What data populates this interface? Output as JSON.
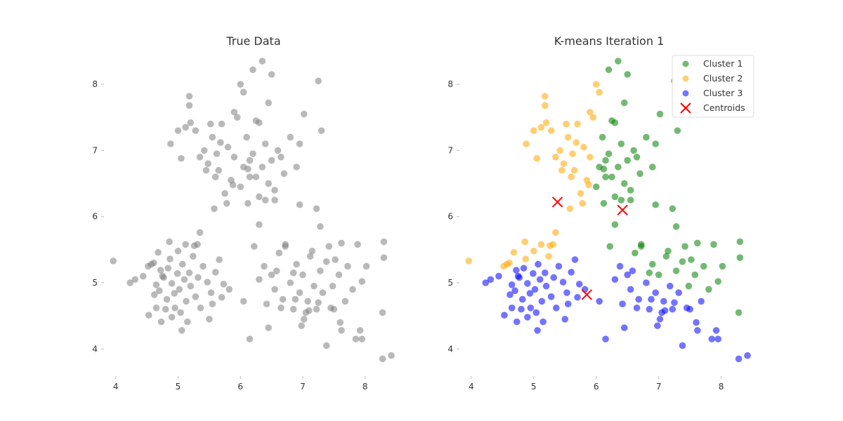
{
  "colors": {
    "gray": "#808080",
    "cluster1": "#008000",
    "cluster2": "#FFA500",
    "cluster3": "#0000FF",
    "centroid": "#FF0000",
    "text": "#333333",
    "tick": "#BBBBBB"
  },
  "chart_data": [
    {
      "type": "scatter",
      "title": "True Data",
      "xlabel": "",
      "ylabel": "",
      "xlim": [
        3.8,
        8.6
      ],
      "ylim": [
        3.6,
        8.5
      ],
      "xticks": [
        "4",
        "5",
        "6",
        "7",
        "8"
      ],
      "yticks": [
        "4",
        "5",
        "6",
        "7",
        "8"
      ],
      "grid": false,
      "series": [
        {
          "color": "#808080",
          "points": [
            [
              3.96,
              5.33
            ],
            [
              4.23,
              5.0
            ],
            [
              4.31,
              5.05
            ],
            [
              4.44,
              5.1
            ],
            [
              4.52,
              5.25
            ],
            [
              4.53,
              4.51
            ],
            [
              4.61,
              5.3
            ],
            [
              4.62,
              4.82
            ],
            [
              4.65,
              4.97
            ],
            [
              4.7,
              4.88
            ],
            [
              4.72,
              5.19
            ],
            [
              4.73,
              4.41
            ],
            [
              4.77,
              5.08
            ],
            [
              4.8,
              4.6
            ],
            [
              4.82,
              4.75
            ],
            [
              4.84,
              5.22
            ],
            [
              4.87,
              5.36
            ],
            [
              4.9,
              4.99
            ],
            [
              4.94,
              4.84
            ],
            [
              4.95,
              4.62
            ],
            [
              4.99,
              5.14
            ],
            [
              5.02,
              4.9
            ],
            [
              5.04,
              4.55
            ],
            [
              5.06,
              4.28
            ],
            [
              5.1,
              5.05
            ],
            [
              5.13,
              4.72
            ],
            [
              5.18,
              5.15
            ],
            [
              5.2,
              4.95
            ],
            [
              5.24,
              5.4
            ],
            [
              5.28,
              4.79
            ],
            [
              5.32,
              5.08
            ],
            [
              5.36,
              4.62
            ],
            [
              5.4,
              5.25
            ],
            [
              5.47,
              5.01
            ],
            [
              5.53,
              4.85
            ],
            [
              5.6,
              5.16
            ],
            [
              5.66,
              5.35
            ],
            [
              5.73,
              4.98
            ],
            [
              4.86,
              5.62
            ],
            [
              5.0,
              5.48
            ],
            [
              5.12,
              5.58
            ],
            [
              5.26,
              5.56
            ],
            [
              4.68,
              5.46
            ],
            [
              5.15,
              4.41
            ],
            [
              4.9,
              4.48
            ],
            [
              5.55,
              4.68
            ],
            [
              5.7,
              4.78
            ],
            [
              5.35,
              5.76
            ],
            [
              4.57,
              5.28
            ],
            [
              4.75,
              5.1
            ],
            [
              5.07,
              5.28
            ],
            [
              5.31,
              5.58
            ],
            [
              5.5,
              4.45
            ],
            [
              4.65,
              4.62
            ],
            [
              5.82,
              4.9
            ],
            [
              5.0,
              7.3
            ],
            [
              5.12,
              7.35
            ],
            [
              5.2,
              7.42
            ],
            [
              5.28,
              7.3
            ],
            [
              5.35,
              6.9
            ],
            [
              5.42,
              7.0
            ],
            [
              5.48,
              6.8
            ],
            [
              5.55,
              7.2
            ],
            [
              5.6,
              6.6
            ],
            [
              5.65,
              6.7
            ],
            [
              5.7,
              7.4
            ],
            [
              5.75,
              6.35
            ],
            [
              5.8,
              7.05
            ],
            [
              5.85,
              6.55
            ],
            [
              5.9,
              6.9
            ],
            [
              5.95,
              7.5
            ],
            [
              6.0,
              6.45
            ],
            [
              6.05,
              6.75
            ],
            [
              6.1,
              7.2
            ],
            [
              6.15,
              6.6
            ],
            [
              6.2,
              6.95
            ],
            [
              6.25,
              7.45
            ],
            [
              6.3,
              6.3
            ],
            [
              6.35,
              6.75
            ],
            [
              6.4,
              7.1
            ],
            [
              6.45,
              6.5
            ],
            [
              6.5,
              6.85
            ],
            [
              6.55,
              6.4
            ],
            [
              6.6,
              7.0
            ],
            [
              6.7,
              6.65
            ],
            [
              6.8,
              7.2
            ],
            [
              6.9,
              6.75
            ],
            [
              5.9,
              7.58
            ],
            [
              6.05,
              7.88
            ],
            [
              6.0,
              8.0
            ],
            [
              6.2,
              8.22
            ],
            [
              6.35,
              8.35
            ],
            [
              6.45,
              7.72
            ],
            [
              6.5,
              8.15
            ],
            [
              7.25,
              8.05
            ],
            [
              7.3,
              7.3
            ],
            [
              6.95,
              7.1
            ],
            [
              5.52,
              7.4
            ],
            [
              5.62,
              6.95
            ],
            [
              5.78,
              6.2
            ],
            [
              6.15,
              6.85
            ],
            [
              6.25,
              6.6
            ],
            [
              6.4,
              6.25
            ],
            [
              5.45,
              6.7
            ],
            [
              5.58,
              6.12
            ],
            [
              6.65,
              6.9
            ],
            [
              5.18,
              7.68
            ],
            [
              5.18,
              7.82
            ],
            [
              4.88,
              7.1
            ],
            [
              5.05,
              6.88
            ],
            [
              5.68,
              7.12
            ],
            [
              5.88,
              6.48
            ],
            [
              6.12,
              6.72
            ],
            [
              6.3,
              7.42
            ],
            [
              6.55,
              6.25
            ],
            [
              7.02,
              7.55
            ],
            [
              6.22,
              5.55
            ],
            [
              6.3,
              5.05
            ],
            [
              6.38,
              5.25
            ],
            [
              6.42,
              4.68
            ],
            [
              6.5,
              5.12
            ],
            [
              6.55,
              4.9
            ],
            [
              6.62,
              5.45
            ],
            [
              6.68,
              4.75
            ],
            [
              6.72,
              5.58
            ],
            [
              6.8,
              5.0
            ],
            [
              6.85,
              4.6
            ],
            [
              6.9,
              5.28
            ],
            [
              6.95,
              4.85
            ],
            [
              7.0,
              5.12
            ],
            [
              7.02,
              4.45
            ],
            [
              7.08,
              4.72
            ],
            [
              7.12,
              5.4
            ],
            [
              7.18,
              4.95
            ],
            [
              7.22,
              4.6
            ],
            [
              7.28,
              5.18
            ],
            [
              7.32,
              4.85
            ],
            [
              7.38,
              5.32
            ],
            [
              7.42,
              5.55
            ],
            [
              7.48,
              4.95
            ],
            [
              7.52,
              5.35
            ],
            [
              7.58,
              5.12
            ],
            [
              7.62,
              5.6
            ],
            [
              7.68,
              4.72
            ],
            [
              7.72,
              5.25
            ],
            [
              7.8,
              4.9
            ],
            [
              7.88,
              5.58
            ],
            [
              7.95,
              5.02
            ],
            [
              8.02,
              5.25
            ],
            [
              7.5,
              4.6
            ],
            [
              7.1,
              4.58
            ],
            [
              6.98,
              4.35
            ],
            [
              7.38,
              4.05
            ],
            [
              6.85,
              5.15
            ],
            [
              6.72,
              5.55
            ],
            [
              6.58,
              5.18
            ],
            [
              7.15,
              5.48
            ],
            [
              7.25,
              4.7
            ],
            [
              6.65,
              4.62
            ],
            [
              6.45,
              4.32
            ],
            [
              6.15,
              4.15
            ],
            [
              6.05,
              4.72
            ],
            [
              6.3,
              5.88
            ],
            [
              6.95,
              6.18
            ],
            [
              7.22,
              6.12
            ],
            [
              7.28,
              5.85
            ],
            [
              6.12,
              6.2
            ],
            [
              7.6,
              4.4
            ],
            [
              7.85,
              4.15
            ],
            [
              7.92,
              4.28
            ],
            [
              7.95,
              4.15
            ],
            [
              8.28,
              4.55
            ],
            [
              8.3,
              5.38
            ],
            [
              8.3,
              5.62
            ],
            [
              8.28,
              3.85
            ],
            [
              8.42,
              3.9
            ],
            [
              7.05,
              4.55
            ],
            [
              6.88,
              4.75
            ],
            [
              7.45,
              4.62
            ],
            [
              7.62,
              4.28
            ]
          ]
        }
      ]
    },
    {
      "type": "scatter",
      "title": "K-means Iteration 1",
      "xlabel": "",
      "ylabel": "",
      "xlim": [
        3.8,
        8.6
      ],
      "ylim": [
        3.6,
        8.5
      ],
      "xticks": [
        "4",
        "5",
        "6",
        "7",
        "8"
      ],
      "yticks": [
        "4",
        "5",
        "6",
        "7",
        "8"
      ],
      "grid": false,
      "legend": {
        "placement": "top-right",
        "entries": [
          "Cluster 1",
          "Cluster 2",
          "Cluster 3",
          "Centroids"
        ]
      },
      "centroids": [
        [
          5.38,
          6.22
        ],
        [
          6.42,
          6.1
        ],
        [
          5.85,
          4.82
        ]
      ]
    }
  ]
}
